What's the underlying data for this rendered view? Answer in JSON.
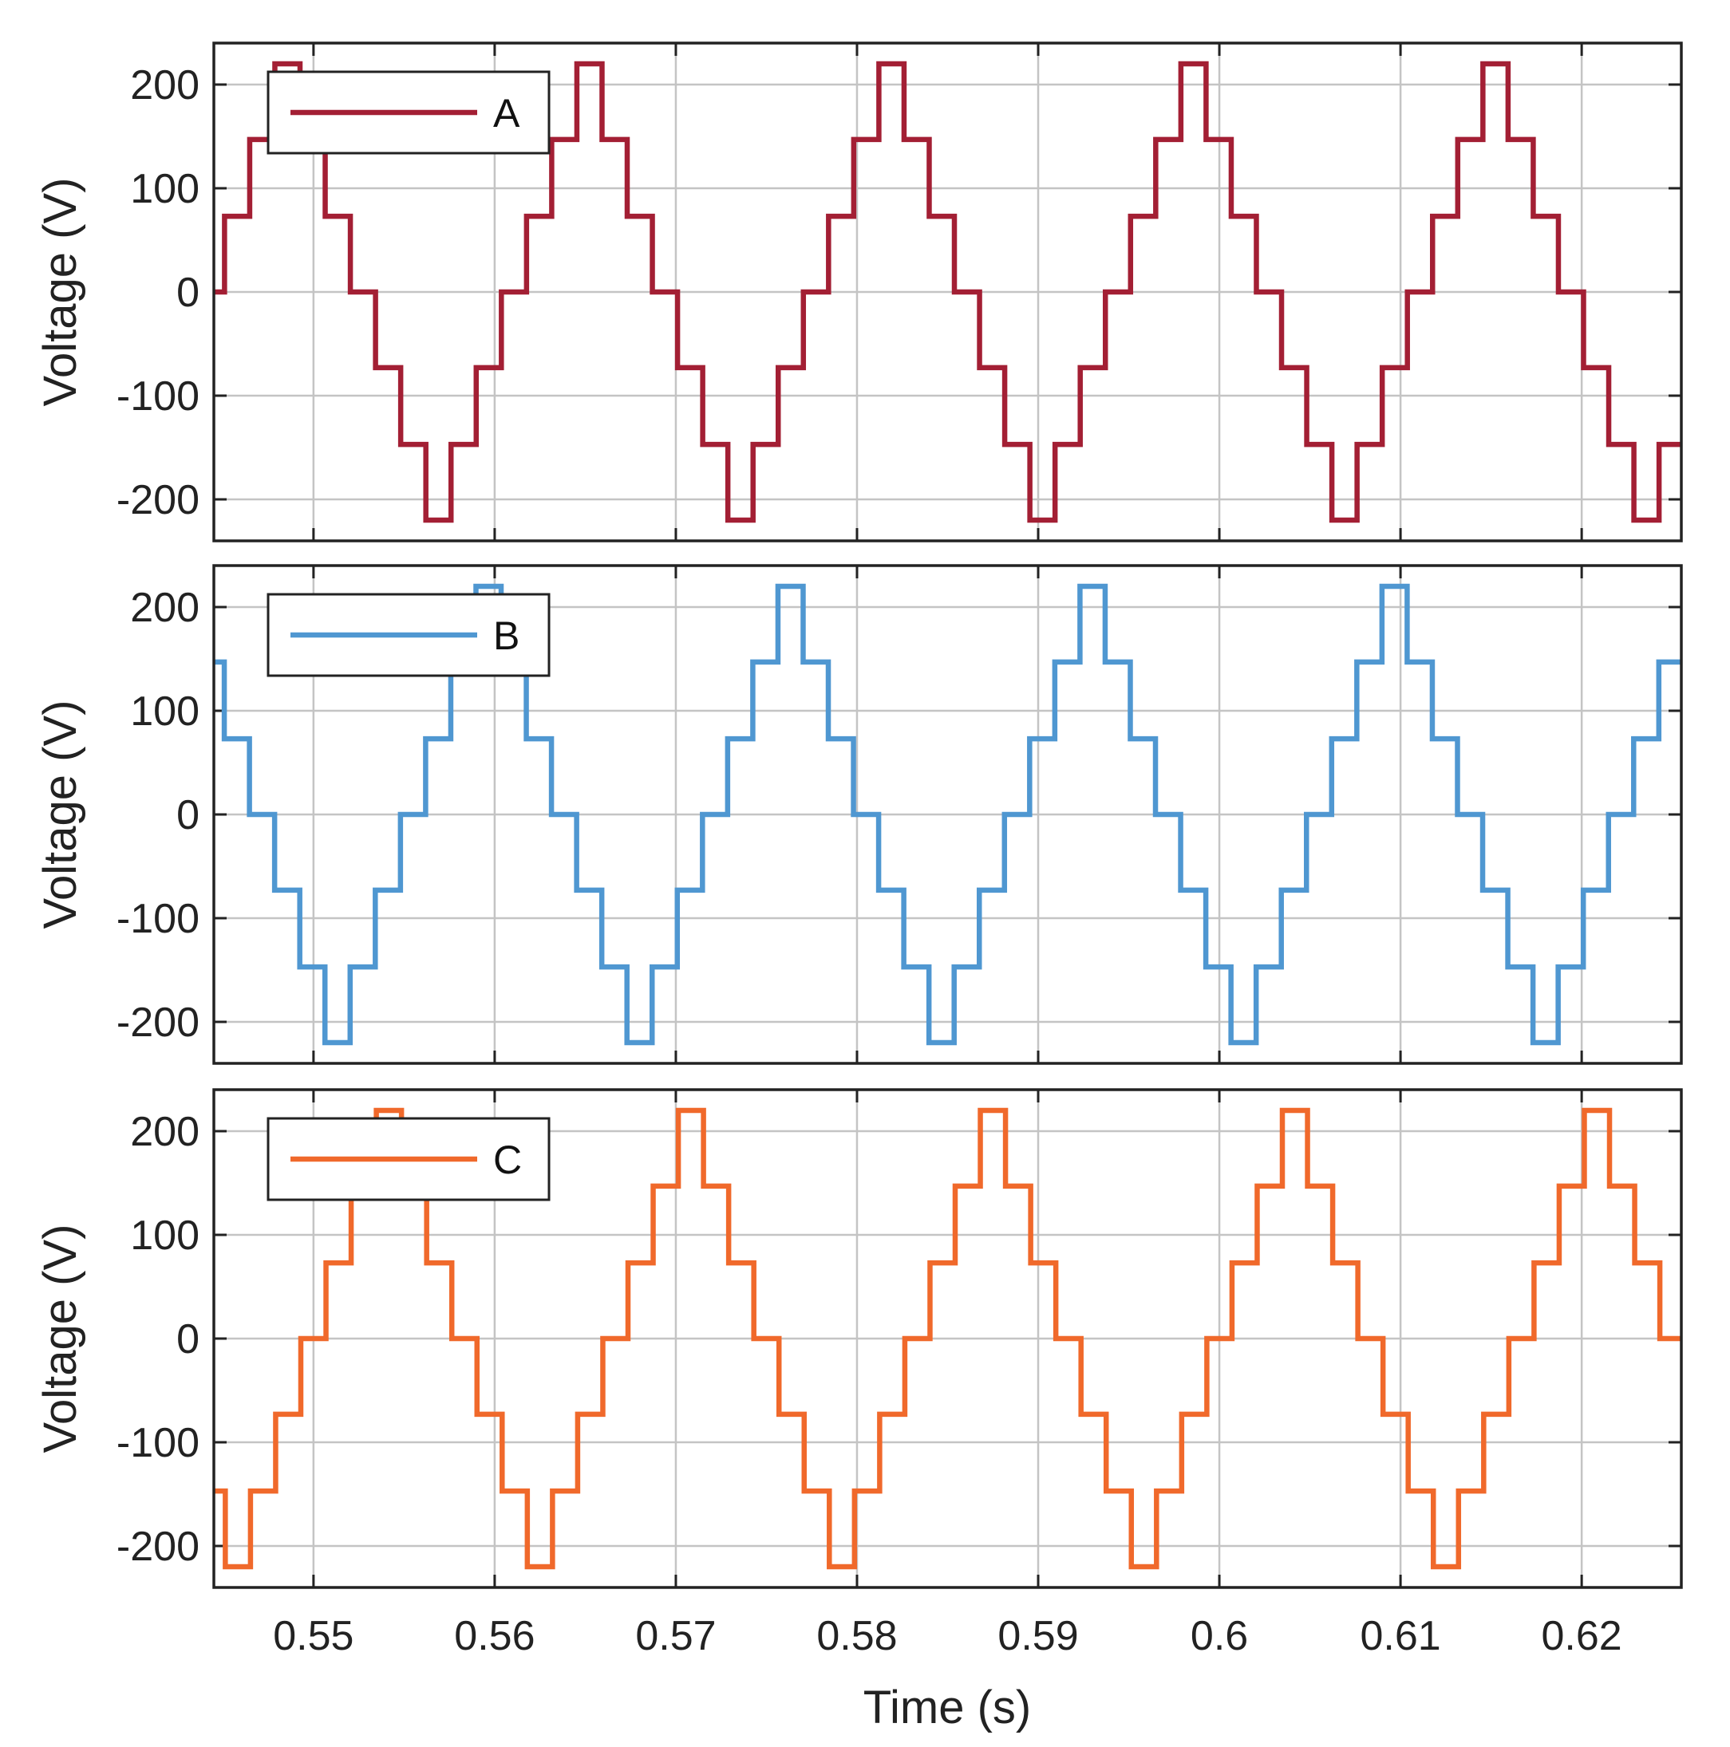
{
  "chart_data": [
    {
      "type": "line",
      "step": true,
      "xlabel": "Time (s)",
      "ylabel": "Voltage (V)",
      "xlim": [
        0.5445,
        0.6255
      ],
      "ylim": [
        -240,
        240
      ],
      "xticks": [
        0.55,
        0.56,
        0.57,
        0.58,
        0.59,
        0.6,
        0.61,
        0.62
      ],
      "xtick_labels": [
        "0.55",
        "0.56",
        "0.57",
        "0.58",
        "0.59",
        "0.6",
        "0.61",
        "0.62"
      ],
      "yticks": [
        -200,
        -100,
        0,
        100,
        200
      ],
      "ytick_labels": [
        "-200",
        "-100",
        "0",
        "100",
        "200"
      ],
      "grid": true,
      "legend_position": "top-left",
      "series": [
        {
          "name": "A",
          "color": "#a31f34",
          "waveform": "multilevel-staircase-sine",
          "amplitude_levels": [
            0,
            73,
            147,
            220
          ],
          "period": 0.01667,
          "first_zero_up": 0.5437,
          "x_start": 0.5445,
          "x_end": 0.6255
        }
      ]
    },
    {
      "type": "line",
      "step": true,
      "xlabel": "Time (s)",
      "ylabel": "Voltage (V)",
      "xlim": [
        0.5445,
        0.6255
      ],
      "ylim": [
        -240,
        240
      ],
      "xticks": [
        0.55,
        0.56,
        0.57,
        0.58,
        0.59,
        0.6,
        0.61,
        0.62
      ],
      "xtick_labels": [
        "0.55",
        "0.56",
        "0.57",
        "0.58",
        "0.59",
        "0.6",
        "0.61",
        "0.62"
      ],
      "yticks": [
        -200,
        -100,
        0,
        100,
        200
      ],
      "ytick_labels": [
        "-200",
        "-100",
        "0",
        "100",
        "200"
      ],
      "grid": true,
      "legend_position": "top-left",
      "series": [
        {
          "name": "B",
          "color": "#4f97d1",
          "waveform": "multilevel-staircase-sine",
          "amplitude_levels": [
            0,
            73,
            147,
            220
          ],
          "period": 0.01667,
          "first_zero_up": 0.5548,
          "x_start": 0.5445,
          "x_end": 0.6255
        }
      ]
    },
    {
      "type": "line",
      "step": true,
      "xlabel": "Time (s)",
      "ylabel": "Voltage (V)",
      "xlim": [
        0.5445,
        0.6255
      ],
      "ylim": [
        -240,
        240
      ],
      "xticks": [
        0.55,
        0.56,
        0.57,
        0.58,
        0.59,
        0.6,
        0.61,
        0.62
      ],
      "xtick_labels": [
        "0.55",
        "0.56",
        "0.57",
        "0.58",
        "0.59",
        "0.6",
        "0.61",
        "0.62"
      ],
      "yticks": [
        -200,
        -100,
        0,
        100,
        200
      ],
      "ytick_labels": [
        "-200",
        "-100",
        "0",
        "100",
        "200"
      ],
      "grid": true,
      "legend_position": "top-left",
      "series": [
        {
          "name": "C",
          "color": "#f0692b",
          "waveform": "multilevel-staircase-sine",
          "amplitude_levels": [
            0,
            73,
            147,
            220
          ],
          "period": 0.01667,
          "first_zero_up": 0.5493,
          "x_start": 0.5445,
          "x_end": 0.6255
        }
      ]
    }
  ]
}
